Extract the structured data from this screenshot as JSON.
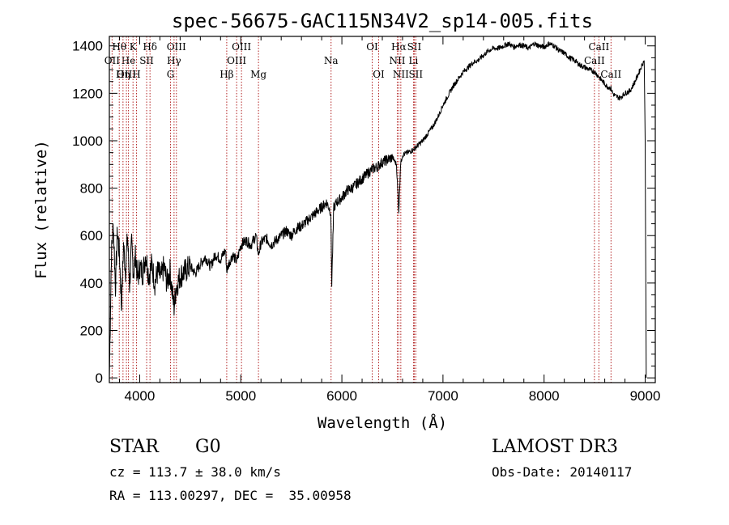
{
  "chart_data": {
    "type": "line",
    "title": "spec-56675-GAC115N34V2_sp14-005.fits",
    "xlabel": "Wavelength (Å)",
    "ylabel": "Flux (relative)",
    "xlim": [
      3700,
      9100
    ],
    "ylim": [
      -20,
      1440
    ],
    "xticks": [
      4000,
      5000,
      6000,
      7000,
      8000,
      9000
    ],
    "yticks": [
      0,
      200,
      400,
      600,
      800,
      1000,
      1200,
      1400
    ],
    "series": [
      {
        "name": "spectrum",
        "x": [
          3700,
          3720,
          3740,
          3760,
          3780,
          3800,
          3820,
          3840,
          3860,
          3880,
          3900,
          3920,
          3940,
          3960,
          3980,
          4000,
          4030,
          4060,
          4090,
          4120,
          4150,
          4180,
          4210,
          4240,
          4270,
          4300,
          4330,
          4340,
          4360,
          4400,
          4450,
          4500,
          4550,
          4600,
          4650,
          4700,
          4750,
          4800,
          4850,
          4861,
          4880,
          4920,
          4960,
          5000,
          5050,
          5100,
          5150,
          5175,
          5200,
          5250,
          5300,
          5350,
          5400,
          5450,
          5500,
          5550,
          5600,
          5650,
          5700,
          5750,
          5800,
          5850,
          5890,
          5900,
          5920,
          5950,
          6000,
          6050,
          6100,
          6150,
          6200,
          6250,
          6300,
          6350,
          6400,
          6450,
          6500,
          6540,
          6563,
          6580,
          6600,
          6650,
          6700,
          6750,
          6800,
          6850,
          6900,
          6950,
          7000,
          7050,
          7100,
          7150,
          7200,
          7250,
          7300,
          7350,
          7400,
          7450,
          7500,
          7550,
          7600,
          7650,
          7700,
          7750,
          7800,
          7850,
          7900,
          7950,
          8000,
          8050,
          8100,
          8150,
          8200,
          8250,
          8300,
          8350,
          8400,
          8450,
          8500,
          8542,
          8560,
          8600,
          8620,
          8662,
          8680,
          8700,
          8750,
          8800,
          8850,
          8900,
          8950,
          8990,
          9000,
          9010
        ],
        "y": [
          0,
          520,
          650,
          380,
          620,
          520,
          300,
          560,
          450,
          600,
          390,
          560,
          440,
          520,
          410,
          470,
          440,
          520,
          430,
          480,
          400,
          450,
          420,
          470,
          400,
          450,
          330,
          300,
          380,
          430,
          450,
          470,
          440,
          480,
          510,
          470,
          520,
          500,
          540,
          450,
          480,
          520,
          490,
          560,
          580,
          560,
          600,
          520,
          570,
          590,
          560,
          580,
          600,
          620,
          600,
          630,
          640,
          660,
          680,
          700,
          720,
          740,
          700,
          400,
          720,
          740,
          760,
          790,
          800,
          820,
          840,
          860,
          880,
          890,
          910,
          920,
          930,
          900,
          700,
          900,
          940,
          950,
          960,
          980,
          1000,
          1030,
          1060,
          1100,
          1150,
          1190,
          1230,
          1260,
          1290,
          1310,
          1330,
          1340,
          1360,
          1380,
          1390,
          1390,
          1400,
          1410,
          1395,
          1405,
          1400,
          1390,
          1410,
          1400,
          1395,
          1410,
          1400,
          1380,
          1370,
          1350,
          1340,
          1320,
          1310,
          1300,
          1290,
          1270,
          1260,
          1240,
          1230,
          1220,
          1200,
          1190,
          1180,
          1200,
          1210,
          1250,
          1300,
          1340,
          1000,
          0
        ]
      }
    ],
    "line_markers": [
      {
        "label": "Hθ",
        "wavelength": 3798,
        "row": 1
      },
      {
        "label": "OII",
        "wavelength": 3727,
        "row": 2
      },
      {
        "label": "OIII",
        "wavelength": 3869,
        "row": 3
      },
      {
        "label": "He",
        "wavelength": 3889,
        "row": 2
      },
      {
        "label": "Hη",
        "wavelength": 3835,
        "row": 3
      },
      {
        "label": "K",
        "wavelength": 3934,
        "row": 1
      },
      {
        "label": "SII",
        "wavelength": 4069,
        "row": 2
      },
      {
        "label": "H",
        "wavelength": 3968,
        "row": 3
      },
      {
        "label": "Hδ",
        "wavelength": 4102,
        "row": 1
      },
      {
        "label": "OIII",
        "wavelength": 4363,
        "row": 1
      },
      {
        "label": "Hγ",
        "wavelength": 4340,
        "row": 2
      },
      {
        "label": "G",
        "wavelength": 4305,
        "row": 3
      },
      {
        "label": "Hβ",
        "wavelength": 4861,
        "row": 3
      },
      {
        "label": "OIII",
        "wavelength": 5007,
        "row": 1
      },
      {
        "label": "OIII",
        "wavelength": 4959,
        "row": 2
      },
      {
        "label": "Mg",
        "wavelength": 5175,
        "row": 3
      },
      {
        "label": "Na",
        "wavelength": 5893,
        "row": 2
      },
      {
        "label": "OI",
        "wavelength": 6300,
        "row": 1
      },
      {
        "label": "OI",
        "wavelength": 6364,
        "row": 3
      },
      {
        "label": "Hα",
        "wavelength": 6563,
        "row": 1
      },
      {
        "label": "SII",
        "wavelength": 6716,
        "row": 1
      },
      {
        "label": "NII",
        "wavelength": 6548,
        "row": 2
      },
      {
        "label": "Li",
        "wavelength": 6708,
        "row": 2
      },
      {
        "label": "NII",
        "wavelength": 6583,
        "row": 3
      },
      {
        "label": "SII",
        "wavelength": 6731,
        "row": 3
      },
      {
        "label": "CaII",
        "wavelength": 8542,
        "row": 1
      },
      {
        "label": "CaII",
        "wavelength": 8498,
        "row": 2
      },
      {
        "label": "CaII",
        "wavelength": 8662,
        "row": 3
      }
    ]
  },
  "info": {
    "object_class": "STAR",
    "subclass": "G0",
    "survey": "LAMOST DR3",
    "redshift_line": "cz = 113.7 ± 38.0 km/s",
    "obs_date": "Obs-Date: 20140117",
    "coords_line": "RA = 113.00297, DEC =  35.00958"
  },
  "colors": {
    "marker_line": "#b22222",
    "spectrum": "#000000",
    "axis": "#000000"
  }
}
